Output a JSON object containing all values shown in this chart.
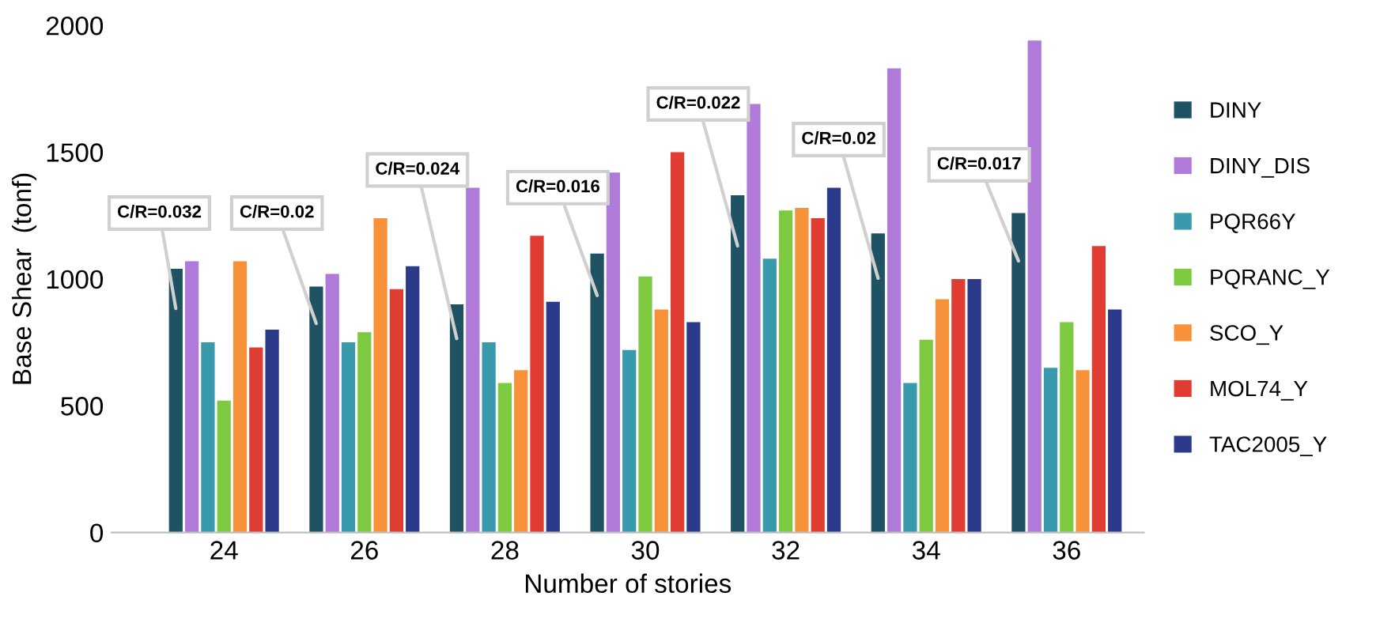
{
  "chart_data": {
    "type": "bar",
    "xlabel": "Number of stories",
    "ylabel": "Base Shear  (tonf)",
    "categories": [
      "24",
      "26",
      "28",
      "30",
      "32",
      "34",
      "36"
    ],
    "series": [
      {
        "name": "DINY",
        "color": "#1f5363",
        "values": [
          1040,
          970,
          900,
          1100,
          1330,
          1180,
          1260
        ]
      },
      {
        "name": "DINY_DIS",
        "color": "#b07ad8",
        "values": [
          1070,
          1020,
          1360,
          1420,
          1690,
          1830,
          1940
        ]
      },
      {
        "name": "PQR66Y",
        "color": "#3a9aad",
        "values": [
          750,
          750,
          750,
          720,
          1080,
          590,
          650
        ]
      },
      {
        "name": "PQRANC_Y",
        "color": "#7dc93f",
        "values": [
          520,
          790,
          590,
          1010,
          1270,
          760,
          830
        ]
      },
      {
        "name": "SCO_Y",
        "color": "#f7923a",
        "values": [
          1070,
          1240,
          640,
          880,
          1280,
          920,
          640
        ]
      },
      {
        "name": "MOL74_Y",
        "color": "#e03c32",
        "values": [
          730,
          960,
          1170,
          1500,
          1240,
          1000,
          1130
        ]
      },
      {
        "name": "TAC2005_Y",
        "color": "#2b3a8a",
        "values": [
          800,
          1050,
          910,
          830,
          1360,
          1000,
          880
        ]
      }
    ],
    "ylim": [
      0,
      2000
    ],
    "yticks": [
      0,
      500,
      1000,
      1500,
      2000
    ],
    "legend": "right",
    "annotations": [
      "C/R=0.032",
      "C/R=0.02",
      "C/R=0.024",
      "C/R=0.016",
      "C/R=0.022",
      "C/R=0.02",
      "C/R=0.017"
    ]
  }
}
